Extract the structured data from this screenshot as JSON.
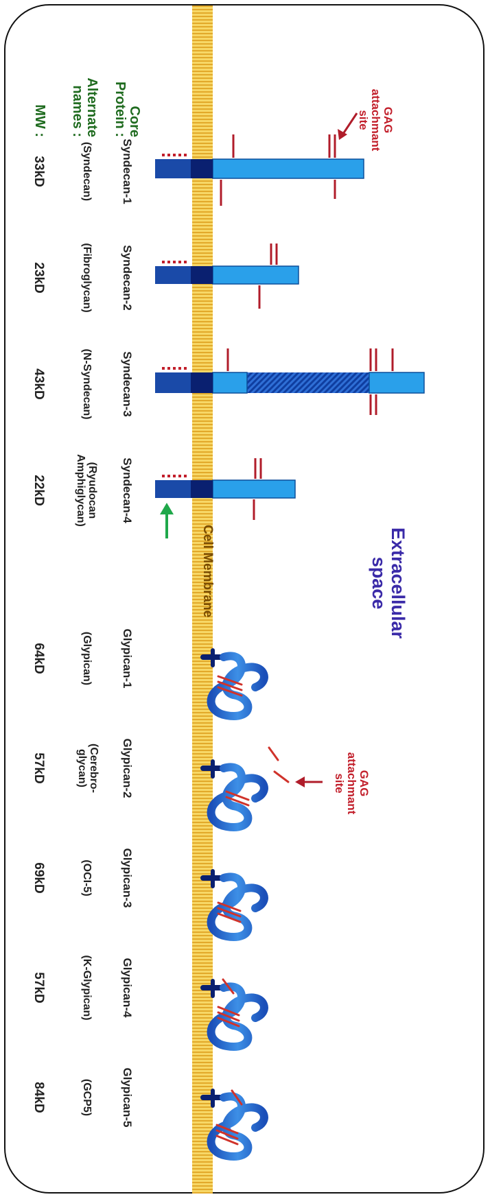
{
  "headers": {
    "core_protein": "Core\nProtein :",
    "alternate_names": "Alternate\nnames :",
    "mw": "MW :"
  },
  "annotations": {
    "gag_top": "GAG\nattachmant\nsite",
    "gag_glypican": "GAG\nattachmant\nsite",
    "extracellular": "Extracellular\nspace",
    "membrane": "Cell Membrane"
  },
  "syndecans": [
    {
      "name": "Syndecan-1",
      "alt": "(Syndecan)",
      "mw": "33kD"
    },
    {
      "name": "Syndecan-2",
      "alt": "(Fibroglycan)",
      "mw": "23kD"
    },
    {
      "name": "Syndecan-3",
      "alt": "(N-Syndecan)",
      "mw": "43kD"
    },
    {
      "name": "Syndecan-4",
      "alt": "(Ryudocan\nAmphiglycan)",
      "mw": "22kD"
    }
  ],
  "glypicans": [
    {
      "name": "Glypican-1",
      "alt": "(Glypican)",
      "mw": "64kD"
    },
    {
      "name": "Glypican-2",
      "alt": "(Cerebro-\nglycan)",
      "mw": "57kD"
    },
    {
      "name": "Glypican-3",
      "alt": "(OCI-5)",
      "mw": "69kD"
    },
    {
      "name": "Glypican-4",
      "alt": "(K-Glypican)",
      "mw": "57kD"
    },
    {
      "name": "Glypican-5",
      "alt": "(GCP5)",
      "mw": "84kD"
    }
  ],
  "colors": {
    "membrane": "#f5d15a",
    "protein": "#3aa6e8",
    "protein_dark": "#0a2a6e",
    "gag": "#b01c2a",
    "arrow_green": "#1fa84a"
  }
}
